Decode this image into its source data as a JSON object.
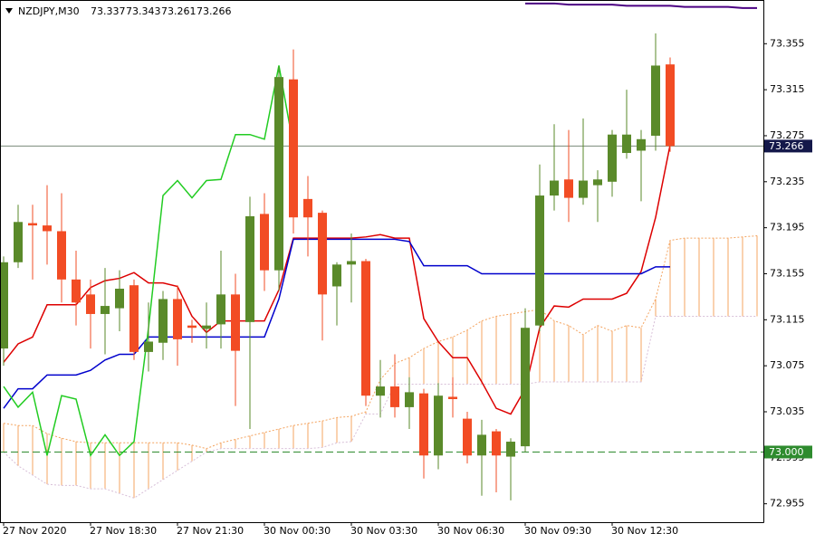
{
  "chart_data": {
    "type": "candlestick",
    "symbol": "NZDJPY,M30",
    "categories": [
      "27 Nov 2020",
      null,
      null,
      null,
      null,
      null,
      "27 Nov 18:30",
      null,
      null,
      null,
      null,
      null,
      "27 Nov 21:30",
      null,
      null,
      null,
      null,
      null,
      "30 Nov 00:30",
      null,
      null,
      null,
      null,
      null,
      "30 Nov 03:30",
      null,
      null,
      null,
      null,
      null,
      "30 Nov 06:30",
      null,
      null,
      null,
      null,
      null,
      "30 Nov 09:30",
      null,
      null,
      null,
      null,
      null,
      "30 Nov 12:30",
      null,
      null,
      null,
      null,
      null,
      null,
      null,
      null,
      null,
      null
    ],
    "open": [
      73.09,
      73.165,
      73.199,
      73.197,
      73.192,
      73.15,
      73.137,
      73.12,
      73.125,
      73.145,
      73.087,
      73.095,
      73.133,
      73.11,
      73.107,
      73.111,
      73.137,
      73.113,
      73.207,
      73.158,
      73.324,
      73.22,
      73.208,
      73.144,
      73.163,
      73.166,
      73.049,
      73.057,
      73.039,
      73.051,
      72.997,
      73.048,
      73.029,
      72.997,
      73.018,
      72.996,
      73.005,
      73.11,
      73.223,
      73.237,
      73.221,
      73.232,
      73.235,
      73.26,
      73.262,
      73.275,
      73.337,
      null,
      null,
      null,
      null,
      null,
      null
    ],
    "high": [
      73.17,
      73.215,
      73.215,
      73.232,
      73.225,
      73.175,
      73.15,
      73.16,
      73.158,
      73.15,
      73.13,
      73.14,
      73.145,
      73.115,
      73.13,
      73.175,
      73.155,
      73.222,
      73.225,
      73.335,
      73.35,
      73.24,
      73.21,
      73.165,
      73.19,
      73.168,
      73.08,
      73.085,
      73.065,
      73.055,
      73.06,
      73.065,
      73.035,
      73.028,
      73.02,
      73.012,
      73.125,
      73.25,
      73.285,
      73.28,
      73.29,
      73.245,
      73.28,
      73.315,
      73.28,
      73.364,
      73.343,
      null,
      null,
      null,
      null,
      null,
      null
    ],
    "low": [
      73.075,
      73.16,
      73.15,
      73.163,
      73.13,
      73.11,
      73.09,
      73.085,
      73.105,
      73.08,
      73.07,
      73.08,
      73.075,
      73.095,
      73.09,
      73.09,
      73.04,
      73.02,
      73.14,
      73.14,
      73.19,
      73.17,
      73.097,
      73.11,
      73.13,
      73.04,
      73.03,
      73.03,
      73.02,
      72.977,
      72.985,
      73.03,
      72.99,
      72.962,
      72.965,
      72.958,
      73.0,
      73.105,
      73.21,
      73.2,
      73.215,
      73.2,
      73.222,
      73.255,
      73.218,
      73.262,
      73.261,
      null,
      null,
      null,
      null,
      null,
      null
    ],
    "close": [
      73.165,
      73.2,
      73.197,
      73.192,
      73.15,
      73.13,
      73.12,
      73.127,
      73.142,
      73.087,
      73.096,
      73.133,
      73.098,
      73.108,
      73.11,
      73.137,
      73.088,
      73.205,
      73.158,
      73.326,
      73.204,
      73.204,
      73.137,
      73.163,
      73.166,
      73.049,
      73.057,
      73.039,
      73.052,
      72.997,
      73.049,
      73.046,
      72.997,
      73.015,
      72.997,
      73.009,
      73.108,
      73.223,
      73.236,
      73.221,
      73.236,
      73.237,
      73.276,
      73.276,
      73.272,
      73.336,
      73.266,
      null,
      null,
      null,
      null,
      null,
      null
    ],
    "bull_color": "#5a8a2a",
    "bear_color": "#f24c24",
    "cloud": {
      "bull_color": "#f4a460",
      "bear_color": "#d8bfd8",
      "span_a": [
        73.025,
        73.023,
        73.023,
        73.016,
        73.012,
        73.009,
        73.008,
        73.008,
        73.008,
        73.008,
        73.008,
        73.008,
        73.008,
        73.006,
        73.003,
        73.008,
        73.011,
        73.014,
        73.017,
        73.02,
        73.023,
        73.025,
        73.027,
        73.03,
        73.031,
        73.035,
        73.063,
        73.077,
        73.082,
        73.09,
        73.096,
        73.1,
        73.106,
        73.114,
        73.118,
        73.12,
        73.122,
        73.124,
        73.114,
        73.11,
        73.102,
        73.11,
        73.105,
        73.11,
        73.108,
        73.133,
        73.184,
        73.186,
        73.186,
        73.186,
        73.186,
        73.187,
        73.188
      ],
      "span_b": [
        73.0,
        72.988,
        72.98,
        72.972,
        72.971,
        72.971,
        72.968,
        72.968,
        72.964,
        72.96,
        72.968,
        72.976,
        72.984,
        72.992,
        73.0,
        73.003,
        73.003,
        73.003,
        73.003,
        73.003,
        73.003,
        73.003,
        73.004,
        73.008,
        73.009,
        73.033,
        73.033,
        73.059,
        73.059,
        73.059,
        73.059,
        73.059,
        73.059,
        73.059,
        73.059,
        73.059,
        73.059,
        73.061,
        73.061,
        73.061,
        73.061,
        73.061,
        73.061,
        73.061,
        73.061,
        73.118,
        73.118,
        73.118,
        73.118,
        73.118,
        73.118,
        73.118,
        73.118
      ]
    },
    "lines": [
      {
        "color": "#dd0000",
        "values": [
          73.078,
          73.094,
          73.1,
          73.128,
          73.128,
          73.128,
          73.143,
          73.149,
          73.151,
          73.156,
          73.147,
          73.147,
          73.144,
          73.118,
          73.104,
          73.114,
          73.114,
          73.114,
          73.114,
          73.141,
          73.186,
          73.186,
          73.186,
          73.186,
          73.186,
          73.187,
          73.189,
          73.186,
          73.186,
          73.116,
          73.096,
          73.082,
          73.082,
          73.061,
          73.038,
          73.033,
          73.055,
          73.108,
          73.127,
          73.126,
          73.133,
          73.133,
          73.133,
          73.138,
          73.157,
          73.204,
          73.267,
          null,
          null,
          null,
          null,
          null,
          null
        ]
      },
      {
        "color": "#0000cc",
        "values": [
          73.038,
          73.055,
          73.055,
          73.067,
          73.067,
          73.067,
          73.071,
          73.08,
          73.085,
          73.085,
          73.1,
          73.1,
          73.1,
          73.1,
          73.1,
          73.1,
          73.1,
          73.1,
          73.1,
          73.133,
          73.185,
          73.185,
          73.185,
          73.185,
          73.185,
          73.185,
          73.185,
          73.185,
          73.183,
          73.162,
          73.162,
          73.162,
          73.162,
          73.155,
          73.155,
          73.155,
          73.155,
          73.155,
          73.155,
          73.155,
          73.155,
          73.155,
          73.155,
          73.155,
          73.155,
          73.161,
          73.161,
          null,
          null,
          null,
          null,
          null,
          null
        ]
      },
      {
        "color": "#22cc22",
        "values": [
          73.057,
          73.039,
          73.052,
          72.997,
          73.049,
          73.046,
          72.997,
          73.015,
          72.997,
          73.009,
          73.108,
          73.223,
          73.236,
          73.221,
          73.236,
          73.237,
          73.276,
          73.276,
          73.272,
          73.336,
          73.266,
          null,
          null,
          null,
          null,
          null,
          null,
          null,
          null,
          null,
          null,
          null,
          null,
          null,
          null,
          null,
          null,
          null,
          null,
          null,
          null,
          null,
          null,
          null,
          null,
          null,
          null,
          null,
          null,
          null,
          null,
          null,
          null
        ]
      },
      {
        "color": "#4b0082",
        "values": [
          null,
          null,
          null,
          null,
          null,
          null,
          null,
          null,
          null,
          null,
          null,
          null,
          null,
          null,
          null,
          null,
          null,
          null,
          null,
          null,
          null,
          null,
          null,
          null,
          null,
          null,
          null,
          null,
          null,
          null,
          null,
          null,
          null,
          null,
          null,
          null,
          73.39,
          73.39,
          73.39,
          73.389,
          73.389,
          73.389,
          73.389,
          73.388,
          73.388,
          73.388,
          73.388,
          73.387,
          73.387,
          73.387,
          73.387,
          73.386,
          73.386
        ]
      }
    ],
    "price_line_color": "#7a8a7a",
    "price_box_color": "#14184a",
    "level": {
      "value": 73,
      "label": "73.000"
    },
    "level_color": "#2e8b2e",
    "ylim": [
      72.939,
      73.393
    ],
    "yticks": [
      72.955,
      72.995,
      73.035,
      73.075,
      73.115,
      73.155,
      73.195,
      73.235,
      73.275,
      73.315,
      73.355
    ]
  }
}
